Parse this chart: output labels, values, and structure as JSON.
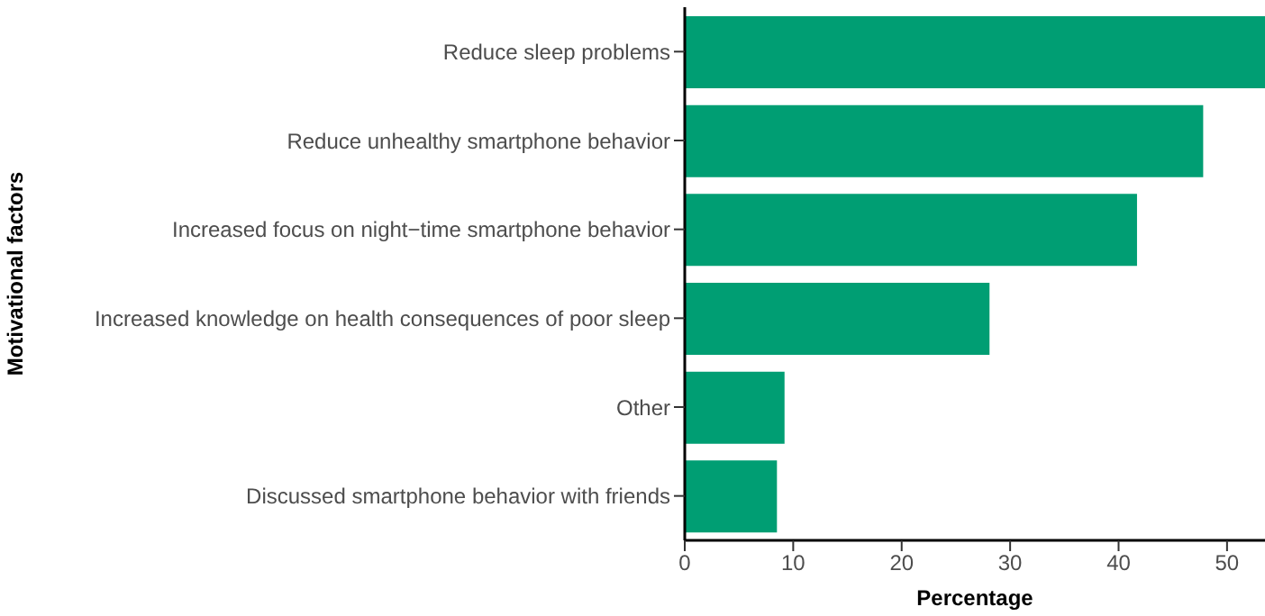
{
  "chart_data": {
    "type": "bar",
    "orientation": "horizontal",
    "xlabel": "Percentage",
    "ylabel": "Motivational factors",
    "categories": [
      "Reduce sleep problems",
      "Reduce unhealthy smartphone behavior",
      "Increased focus on night−time smartphone behavior",
      "Increased knowledge on health consequences of poor sleep",
      "Other",
      "Discussed smartphone behavior with friends"
    ],
    "values": [
      53.5,
      47.8,
      41.7,
      28.1,
      9.2,
      8.5
    ],
    "color": "#009e73",
    "xlim": [
      0,
      53.5
    ],
    "xticks": [
      0,
      10,
      20,
      30,
      40,
      50
    ],
    "grid": false
  }
}
